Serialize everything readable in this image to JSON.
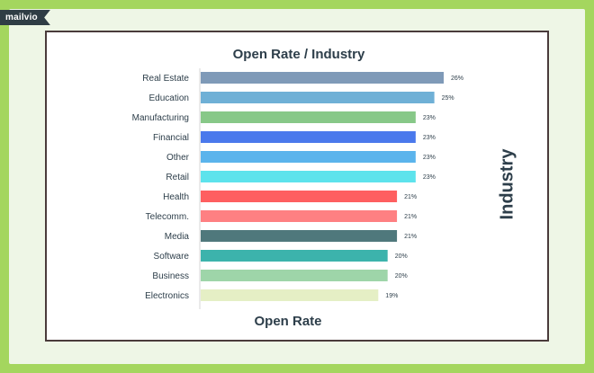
{
  "brand": {
    "logo_text": "mailvio"
  },
  "chart_data": {
    "type": "bar",
    "orientation": "horizontal",
    "title": "Open Rate / Industry",
    "xlabel": "Open Rate",
    "ylabel": "Industry",
    "categories": [
      "Real Estate",
      "Education",
      "Manufacturing",
      "Financial",
      "Other",
      "Retail",
      "Health",
      "Telecomm.",
      "Media",
      "Software",
      "Business",
      "Electronics"
    ],
    "values": [
      26,
      25,
      23,
      23,
      23,
      23,
      21,
      21,
      21,
      20,
      20,
      19
    ],
    "value_labels": [
      "26%",
      "25%",
      "23%",
      "23%",
      "23%",
      "23%",
      "21%",
      "21%",
      "21%",
      "20%",
      "20%",
      "19%"
    ],
    "colors": [
      "#7f9ab8",
      "#6fb0d6",
      "#87c888",
      "#4a79ec",
      "#5bb4ec",
      "#5de3ec",
      "#fe5f60",
      "#fe8082",
      "#4f787c",
      "#3cb3ac",
      "#9ed5a9",
      "#e5efc5"
    ],
    "xlim": [
      0,
      26
    ],
    "grid": false,
    "legend": "none"
  }
}
